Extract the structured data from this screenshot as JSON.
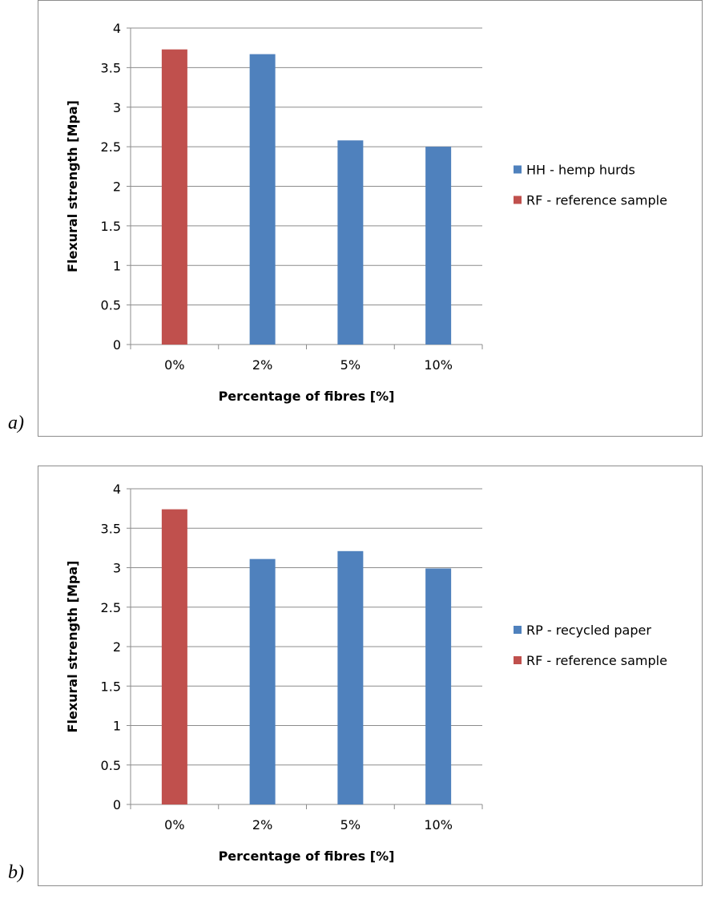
{
  "panels": [
    {
      "letter": "a)",
      "chart_data": {
        "type": "bar",
        "categories": [
          "0%",
          "2%",
          "5%",
          "10%"
        ],
        "series": [
          {
            "name": "HH - hemp hurds",
            "color": "#4f81bd",
            "values": [
              null,
              3.67,
              2.58,
              2.5
            ]
          },
          {
            "name": "RF - reference sample",
            "color": "#c0504d",
            "values": [
              3.73,
              null,
              null,
              null
            ]
          }
        ],
        "xlabel": "Percentage of fibres [%]",
        "ylabel": "Flexural strength [Mpa]",
        "ylim": [
          0,
          4
        ],
        "yticks": [
          "0",
          "0.5",
          "1",
          "1.5",
          "2",
          "2.5",
          "3",
          "3.5",
          "4"
        ],
        "grid": true,
        "legend": "right"
      }
    },
    {
      "letter": "b)",
      "chart_data": {
        "type": "bar",
        "categories": [
          "0%",
          "2%",
          "5%",
          "10%"
        ],
        "series": [
          {
            "name": "RP - recycled paper",
            "color": "#4f81bd",
            "values": [
              null,
              3.11,
              3.21,
              2.99
            ]
          },
          {
            "name": "RF - reference sample",
            "color": "#c0504d",
            "values": [
              3.74,
              null,
              null,
              null
            ]
          }
        ],
        "xlabel": "Percentage of fibres [%]",
        "ylabel": "Flexural strength [Mpa]",
        "ylim": [
          0,
          4
        ],
        "yticks": [
          "0",
          "0.5",
          "1",
          "1.5",
          "2",
          "2.5",
          "3",
          "3.5",
          "4"
        ],
        "grid": true,
        "legend": "right"
      }
    }
  ]
}
